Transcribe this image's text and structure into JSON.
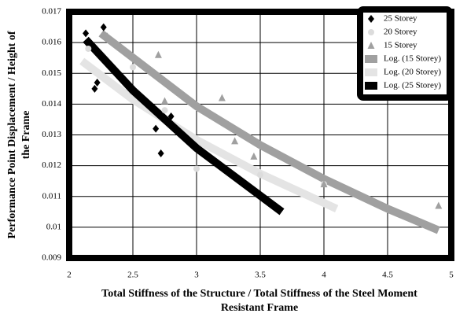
{
  "chart_data": {
    "type": "scatter",
    "ylabel": [
      "Performance Point Displacement / Height of",
      "the Frame"
    ],
    "xlabel": [
      "Total Stiffness of the Structure / Total Stiffness of the Steel Moment",
      "Resistant Frame"
    ],
    "xlim": [
      2,
      5
    ],
    "ylim": [
      0.009,
      0.017
    ],
    "xticks": [
      2,
      2.5,
      3,
      3.5,
      4,
      4.5,
      5
    ],
    "yticks": [
      0.009,
      0.01,
      0.011,
      0.012,
      0.013,
      0.014,
      0.015,
      0.016,
      0.017
    ],
    "grid": true,
    "legend": "top-right",
    "series": [
      {
        "name": "25 Storey",
        "color": "#000000",
        "marker": "diamond",
        "x": [
          2.13,
          2.2,
          2.22,
          2.27,
          2.68,
          2.72,
          2.8
        ],
        "values": [
          0.0163,
          0.0145,
          0.0147,
          0.0165,
          0.0132,
          0.0124,
          0.0136
        ]
      },
      {
        "name": "20 Storey",
        "color": "#dcdcdc",
        "marker": "circle",
        "x": [
          2.15,
          2.5,
          2.75,
          3.0,
          3.5,
          4.0
        ],
        "values": [
          0.0158,
          0.0152,
          0.0138,
          0.0119,
          0.0117,
          0.0114
        ]
      },
      {
        "name": "15 Storey",
        "color": "#a0a0a0",
        "marker": "triangle",
        "x": [
          2.3,
          2.7,
          2.75,
          3.2,
          3.3,
          3.45,
          4.0,
          4.9
        ],
        "values": [
          0.0162,
          0.0156,
          0.0141,
          0.0142,
          0.0128,
          0.0123,
          0.0114,
          0.0107
        ]
      },
      {
        "name": "Log. (15 Storey)",
        "color": "#a0a0a0",
        "marker": "line",
        "x": [
          2.25,
          3,
          3.5,
          4,
          4.5,
          4.9
        ],
        "values": [
          0.0163,
          0.01393,
          0.01267,
          0.01157,
          0.0106,
          0.0099
        ]
      },
      {
        "name": "Log. (20 Storey)",
        "color": "#e4e4e4",
        "marker": "line",
        "x": [
          2.1,
          2.5,
          3,
          3.5,
          4.1
        ],
        "values": [
          0.0154,
          0.01415,
          0.01284,
          0.01174,
          0.0106
        ]
      },
      {
        "name": "Log. (25 Storey)",
        "color": "#000000",
        "marker": "line",
        "x": [
          2.13,
          2.5,
          3,
          3.67
        ],
        "values": [
          0.0161,
          0.01445,
          0.01257,
          0.0105
        ]
      }
    ]
  }
}
